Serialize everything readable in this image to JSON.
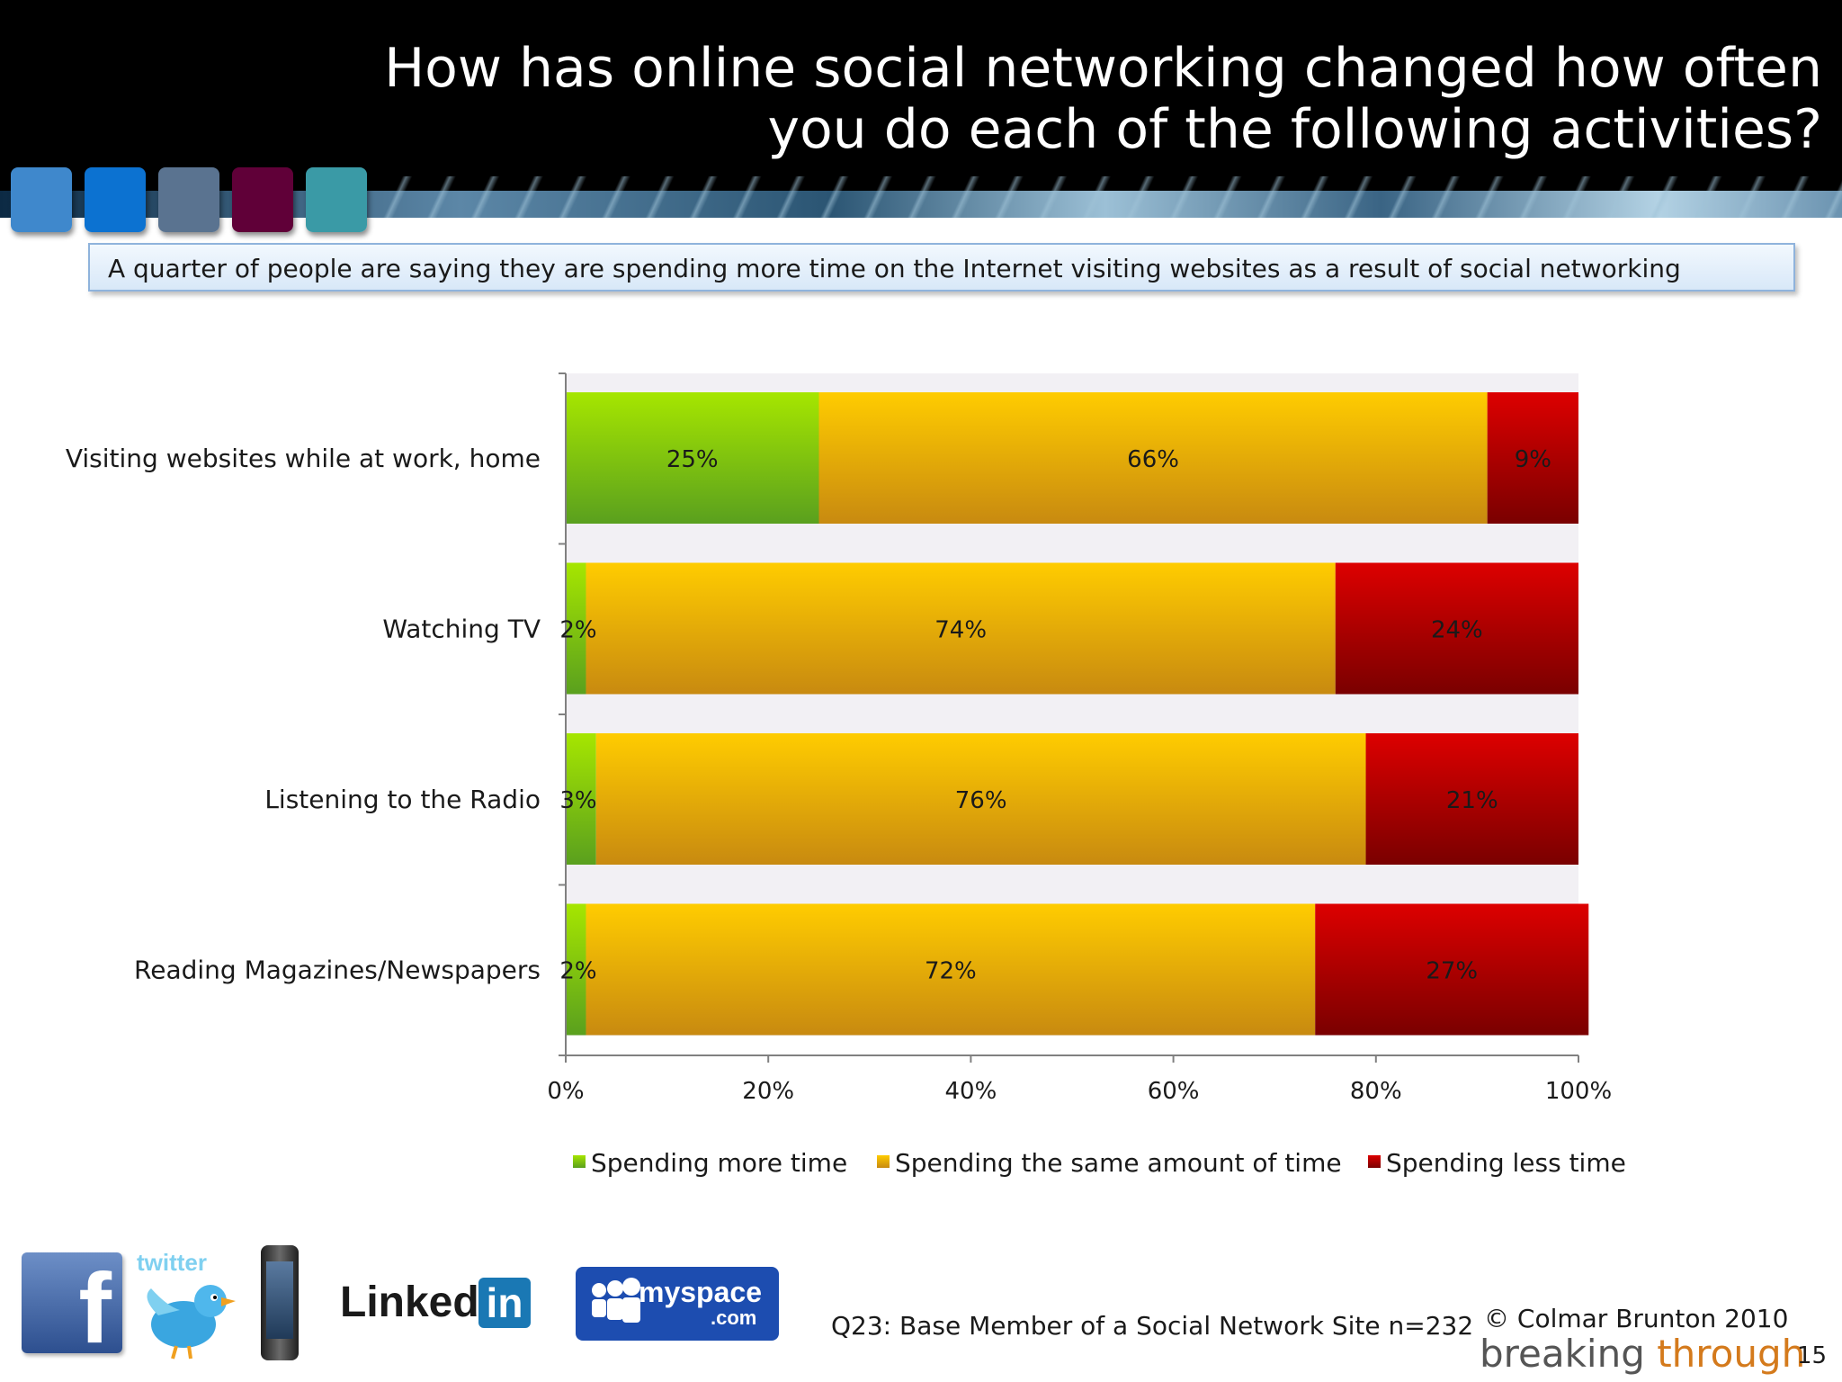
{
  "header": {
    "title_line1": "How has online social networking changed how often",
    "title_line2": "you do each of the following activities?"
  },
  "decor_squares": [
    "#3f88cc",
    "#0c72d1",
    "#5a7390",
    "#600038",
    "#3a9aa6"
  ],
  "subtitle": "A quarter of people are saying they are spending more time on the Internet visiting websites as a result of social networking",
  "chart_data": {
    "type": "bar",
    "orientation": "horizontal",
    "stacked": true,
    "percent_stacked": true,
    "categories": [
      "Visiting websites while at work, home",
      "Watching TV",
      "Listening to the Radio",
      "Reading Magazines/Newspapers"
    ],
    "series": [
      {
        "name": "Spending more time",
        "values": [
          25,
          2,
          3,
          2
        ],
        "labels": [
          "25%",
          "2%",
          "3%",
          "2%"
        ],
        "color": "#8ed80e"
      },
      {
        "name": "Spending the same amount of time",
        "values": [
          66,
          74,
          76,
          72
        ],
        "labels": [
          "66%",
          "74%",
          "76%",
          "72%"
        ],
        "color": "#f2b800"
      },
      {
        "name": "Spending less time",
        "values": [
          9,
          24,
          21,
          27
        ],
        "labels": [
          "9%",
          "24%",
          "21%",
          "27%"
        ],
        "color": "#c20000"
      }
    ],
    "x_ticks": [
      "0%",
      "20%",
      "40%",
      "60%",
      "80%",
      "100%"
    ],
    "xlim": [
      0,
      100
    ],
    "legend_position": "bottom",
    "grid": false
  },
  "footer": {
    "base_note": "Q23: Base Member of a Social Network Site  n=232",
    "copyright": "© Colmar Brunton 2010",
    "brand_word1": "breaking",
    "brand_word2": "through",
    "page_number": "15"
  },
  "logos": {
    "twitter_text": "twitter",
    "linkedin_text": "Linked",
    "linkedin_in": "in",
    "myspace_text": "myspace",
    "myspace_com": ".com",
    "facebook_letter": "f"
  }
}
